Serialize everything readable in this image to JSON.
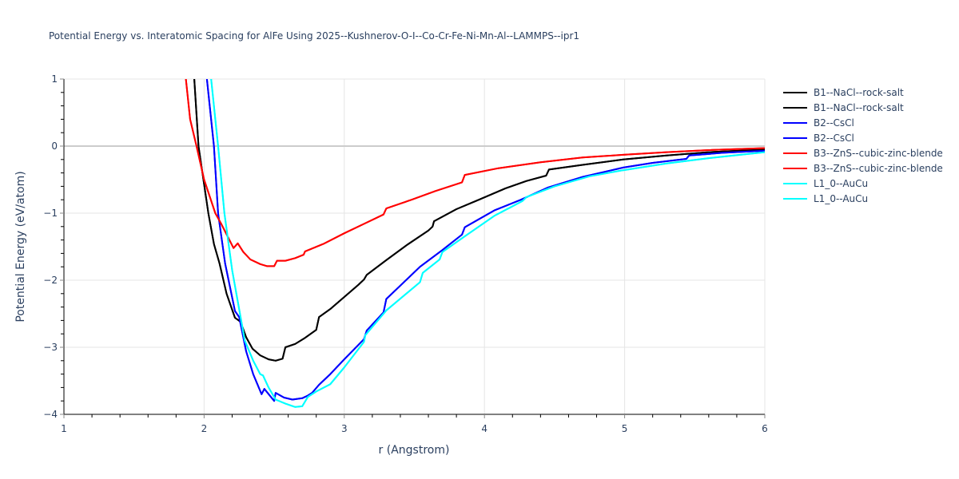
{
  "chart_data": {
    "type": "line",
    "title": "Potential Energy vs. Interatomic Spacing for AlFe Using 2025--Kushnerov-O-I--Co-Cr-Fe-Ni-Mn-Al--LAMMPS--ipr1",
    "xlabel": "r (Angstrom)",
    "ylabel": "Potential Energy (eV/atom)",
    "xlim": [
      1,
      6
    ],
    "ylim": [
      -4,
      1
    ],
    "xticks": [
      1,
      2,
      3,
      4,
      5,
      6
    ],
    "yticks": [
      1,
      0,
      -1,
      -2,
      -3,
      -4
    ],
    "grid": true,
    "legend_position": "right",
    "series": [
      {
        "name": "B1--NaCl--rock-salt",
        "color": "#000000",
        "x": [
          1.93,
          1.96,
          2.03,
          2.07,
          2.11,
          2.16,
          2.22,
          2.26,
          2.3,
          2.345,
          2.4,
          2.46,
          2.51,
          2.56,
          2.58,
          2.65,
          2.72,
          2.8,
          2.82,
          2.9,
          3.0,
          3.1,
          3.14,
          3.16,
          3.3,
          3.45,
          3.6,
          3.63,
          3.64,
          3.8,
          3.96,
          4.15,
          4.3,
          4.44,
          4.46,
          4.7,
          4.99,
          5.3,
          5.6,
          6.0
        ],
        "y": [
          1.0,
          0.0,
          -1.0,
          -1.46,
          -1.75,
          -2.2,
          -2.56,
          -2.62,
          -2.85,
          -3.02,
          -3.12,
          -3.18,
          -3.2,
          -3.17,
          -3.0,
          -2.95,
          -2.86,
          -2.74,
          -2.55,
          -2.43,
          -2.25,
          -2.07,
          -1.99,
          -1.92,
          -1.7,
          -1.47,
          -1.26,
          -1.2,
          -1.12,
          -0.94,
          -0.8,
          -0.63,
          -0.52,
          -0.44,
          -0.35,
          -0.28,
          -0.2,
          -0.14,
          -0.09,
          -0.05
        ]
      },
      {
        "name": "B1--NaCl--rock-salt",
        "color": "#000000",
        "x": [
          1.93,
          1.96,
          2.03,
          2.07,
          2.11,
          2.16,
          2.22,
          2.26,
          2.3,
          2.345,
          2.4,
          2.46,
          2.51,
          2.56,
          2.58,
          2.65,
          2.72,
          2.8,
          2.82,
          2.9,
          3.0,
          3.1,
          3.14,
          3.16,
          3.3,
          3.45,
          3.6,
          3.63,
          3.64,
          3.8,
          3.96,
          4.15,
          4.3,
          4.44,
          4.46,
          4.7,
          4.99,
          5.3,
          5.6,
          6.0
        ],
        "y": [
          1.0,
          0.0,
          -1.0,
          -1.46,
          -1.75,
          -2.2,
          -2.56,
          -2.62,
          -2.85,
          -3.02,
          -3.12,
          -3.18,
          -3.2,
          -3.17,
          -3.0,
          -2.95,
          -2.86,
          -2.74,
          -2.55,
          -2.43,
          -2.25,
          -2.07,
          -1.99,
          -1.92,
          -1.7,
          -1.47,
          -1.26,
          -1.2,
          -1.12,
          -0.94,
          -0.8,
          -0.63,
          -0.52,
          -0.44,
          -0.35,
          -0.28,
          -0.2,
          -0.14,
          -0.09,
          -0.05
        ]
      },
      {
        "name": "B2--CsCl",
        "color": "#0000ff",
        "x": [
          2.02,
          2.07,
          2.1,
          2.15,
          2.22,
          2.25,
          2.3,
          2.35,
          2.41,
          2.43,
          2.5,
          2.51,
          2.57,
          2.63,
          2.7,
          2.74,
          2.77,
          2.82,
          2.9,
          3.0,
          3.14,
          3.16,
          3.28,
          3.3,
          3.4,
          3.54,
          3.7,
          3.84,
          3.86,
          4.07,
          4.26,
          4.45,
          4.7,
          4.99,
          5.2,
          5.44,
          5.46,
          5.7,
          6.0
        ],
        "y": [
          1.0,
          0.0,
          -1.0,
          -1.75,
          -2.46,
          -2.55,
          -3.06,
          -3.4,
          -3.7,
          -3.62,
          -3.8,
          -3.68,
          -3.75,
          -3.78,
          -3.76,
          -3.72,
          -3.68,
          -3.56,
          -3.4,
          -3.18,
          -2.88,
          -2.75,
          -2.48,
          -2.28,
          -2.08,
          -1.8,
          -1.55,
          -1.32,
          -1.21,
          -0.96,
          -0.8,
          -0.62,
          -0.46,
          -0.32,
          -0.25,
          -0.19,
          -0.14,
          -0.1,
          -0.07
        ]
      },
      {
        "name": "B2--CsCl",
        "color": "#0000ff",
        "x": [
          2.02,
          2.07,
          2.1,
          2.15,
          2.22,
          2.25,
          2.3,
          2.35,
          2.41,
          2.43,
          2.5,
          2.51,
          2.57,
          2.63,
          2.7,
          2.74,
          2.77,
          2.82,
          2.9,
          3.0,
          3.14,
          3.16,
          3.28,
          3.3,
          3.4,
          3.54,
          3.7,
          3.84,
          3.86,
          4.07,
          4.26,
          4.45,
          4.7,
          4.99,
          5.2,
          5.44,
          5.46,
          5.7,
          6.0
        ],
        "y": [
          1.0,
          0.0,
          -1.0,
          -1.75,
          -2.46,
          -2.55,
          -3.06,
          -3.4,
          -3.7,
          -3.62,
          -3.8,
          -3.68,
          -3.75,
          -3.78,
          -3.76,
          -3.72,
          -3.68,
          -3.56,
          -3.4,
          -3.18,
          -2.88,
          -2.75,
          -2.48,
          -2.28,
          -2.08,
          -1.8,
          -1.55,
          -1.32,
          -1.21,
          -0.96,
          -0.8,
          -0.62,
          -0.46,
          -0.32,
          -0.25,
          -0.19,
          -0.14,
          -0.1,
          -0.07
        ]
      },
      {
        "name": "B3--ZnS--cubic-zinc-blende",
        "color": "#ff0000",
        "x": [
          1.87,
          1.9,
          1.946,
          2.0,
          2.08,
          2.12,
          2.21,
          2.24,
          2.28,
          2.33,
          2.4,
          2.45,
          2.5,
          2.52,
          2.58,
          2.65,
          2.71,
          2.72,
          2.85,
          3.0,
          3.15,
          3.28,
          3.3,
          3.48,
          3.65,
          3.84,
          3.86,
          4.1,
          4.4,
          4.7,
          4.99,
          5.3,
          5.6,
          6.0
        ],
        "y": [
          1.0,
          0.4,
          0.0,
          -0.5,
          -1.0,
          -1.15,
          -1.52,
          -1.45,
          -1.58,
          -1.69,
          -1.76,
          -1.79,
          -1.79,
          -1.71,
          -1.71,
          -1.67,
          -1.62,
          -1.57,
          -1.46,
          -1.3,
          -1.15,
          -1.02,
          -0.93,
          -0.8,
          -0.67,
          -0.54,
          -0.43,
          -0.33,
          -0.24,
          -0.17,
          -0.13,
          -0.09,
          -0.06,
          -0.03
        ]
      },
      {
        "name": "B3--ZnS--cubic-zinc-blende",
        "color": "#ff0000",
        "x": [
          1.87,
          1.9,
          1.946,
          2.0,
          2.08,
          2.12,
          2.21,
          2.24,
          2.28,
          2.33,
          2.4,
          2.45,
          2.5,
          2.52,
          2.58,
          2.65,
          2.71,
          2.72,
          2.85,
          3.0,
          3.15,
          3.28,
          3.3,
          3.48,
          3.65,
          3.84,
          3.86,
          4.1,
          4.4,
          4.7,
          4.99,
          5.3,
          5.6,
          6.0
        ],
        "y": [
          1.0,
          0.4,
          0.0,
          -0.5,
          -1.0,
          -1.15,
          -1.52,
          -1.45,
          -1.58,
          -1.69,
          -1.76,
          -1.79,
          -1.79,
          -1.71,
          -1.71,
          -1.67,
          -1.62,
          -1.57,
          -1.46,
          -1.3,
          -1.15,
          -1.02,
          -0.93,
          -0.8,
          -0.67,
          -0.54,
          -0.43,
          -0.33,
          -0.24,
          -0.17,
          -0.13,
          -0.09,
          -0.06,
          -0.03
        ]
      },
      {
        "name": "L1_0--AuCu",
        "color": "#00ffff",
        "x": [
          2.05,
          2.1,
          2.145,
          2.2,
          2.29,
          2.35,
          2.4,
          2.42,
          2.46,
          2.51,
          2.58,
          2.65,
          2.7,
          2.74,
          2.8,
          2.9,
          3.0,
          3.14,
          3.15,
          3.3,
          3.54,
          3.56,
          3.68,
          3.7,
          3.85,
          4.07,
          4.27,
          4.3,
          4.5,
          4.75,
          4.99,
          5.3,
          5.6,
          6.0
        ],
        "y": [
          1.0,
          0.0,
          -1.0,
          -1.85,
          -2.9,
          -3.2,
          -3.4,
          -3.42,
          -3.6,
          -3.78,
          -3.84,
          -3.89,
          -3.88,
          -3.74,
          -3.66,
          -3.55,
          -3.3,
          -2.92,
          -2.82,
          -2.45,
          -2.03,
          -1.89,
          -1.69,
          -1.58,
          -1.36,
          -1.04,
          -0.82,
          -0.76,
          -0.6,
          -0.45,
          -0.36,
          -0.26,
          -0.18,
          -0.09
        ]
      },
      {
        "name": "L1_0--AuCu",
        "color": "#00ffff",
        "x": [
          2.05,
          2.1,
          2.145,
          2.2,
          2.29,
          2.35,
          2.4,
          2.42,
          2.46,
          2.51,
          2.58,
          2.65,
          2.7,
          2.74,
          2.8,
          2.9,
          3.0,
          3.14,
          3.15,
          3.3,
          3.54,
          3.56,
          3.68,
          3.7,
          3.85,
          4.07,
          4.27,
          4.3,
          4.5,
          4.75,
          4.99,
          5.3,
          5.6,
          6.0
        ],
        "y": [
          1.0,
          0.0,
          -1.0,
          -1.85,
          -2.9,
          -3.2,
          -3.4,
          -3.42,
          -3.6,
          -3.78,
          -3.84,
          -3.89,
          -3.88,
          -3.74,
          -3.66,
          -3.55,
          -3.3,
          -2.92,
          -2.82,
          -2.45,
          -2.03,
          -1.89,
          -1.69,
          -1.58,
          -1.36,
          -1.04,
          -0.82,
          -0.76,
          -0.6,
          -0.45,
          -0.36,
          -0.26,
          -0.18,
          -0.09
        ]
      }
    ]
  }
}
